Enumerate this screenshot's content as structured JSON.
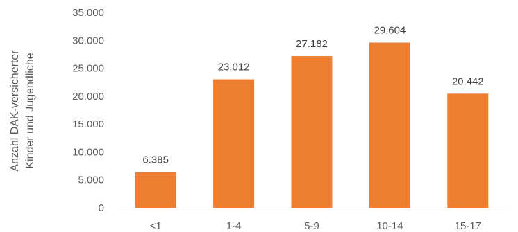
{
  "chart_data": {
    "type": "bar",
    "categories": [
      "<1",
      "1-4",
      "5-9",
      "10-14",
      "15-17"
    ],
    "values": [
      6385,
      23012,
      27182,
      29604,
      20442
    ],
    "value_labels": [
      "6.385",
      "23.012",
      "27.182",
      "29.604",
      "20.442"
    ],
    "ylabel_lines": [
      "Anzahl DAK-versicherter",
      "Kinder und Jugendliche"
    ],
    "ylim": [
      0,
      35000
    ],
    "yticks": [
      0,
      5000,
      10000,
      15000,
      20000,
      25000,
      30000,
      35000
    ],
    "ytick_labels": [
      "0",
      "5.000",
      "10.000",
      "15.000",
      "20.000",
      "25.000",
      "30.000",
      "35.000"
    ],
    "grid": false,
    "bar_color": "#ED7D31",
    "axis_color": "#D9D9D9"
  }
}
